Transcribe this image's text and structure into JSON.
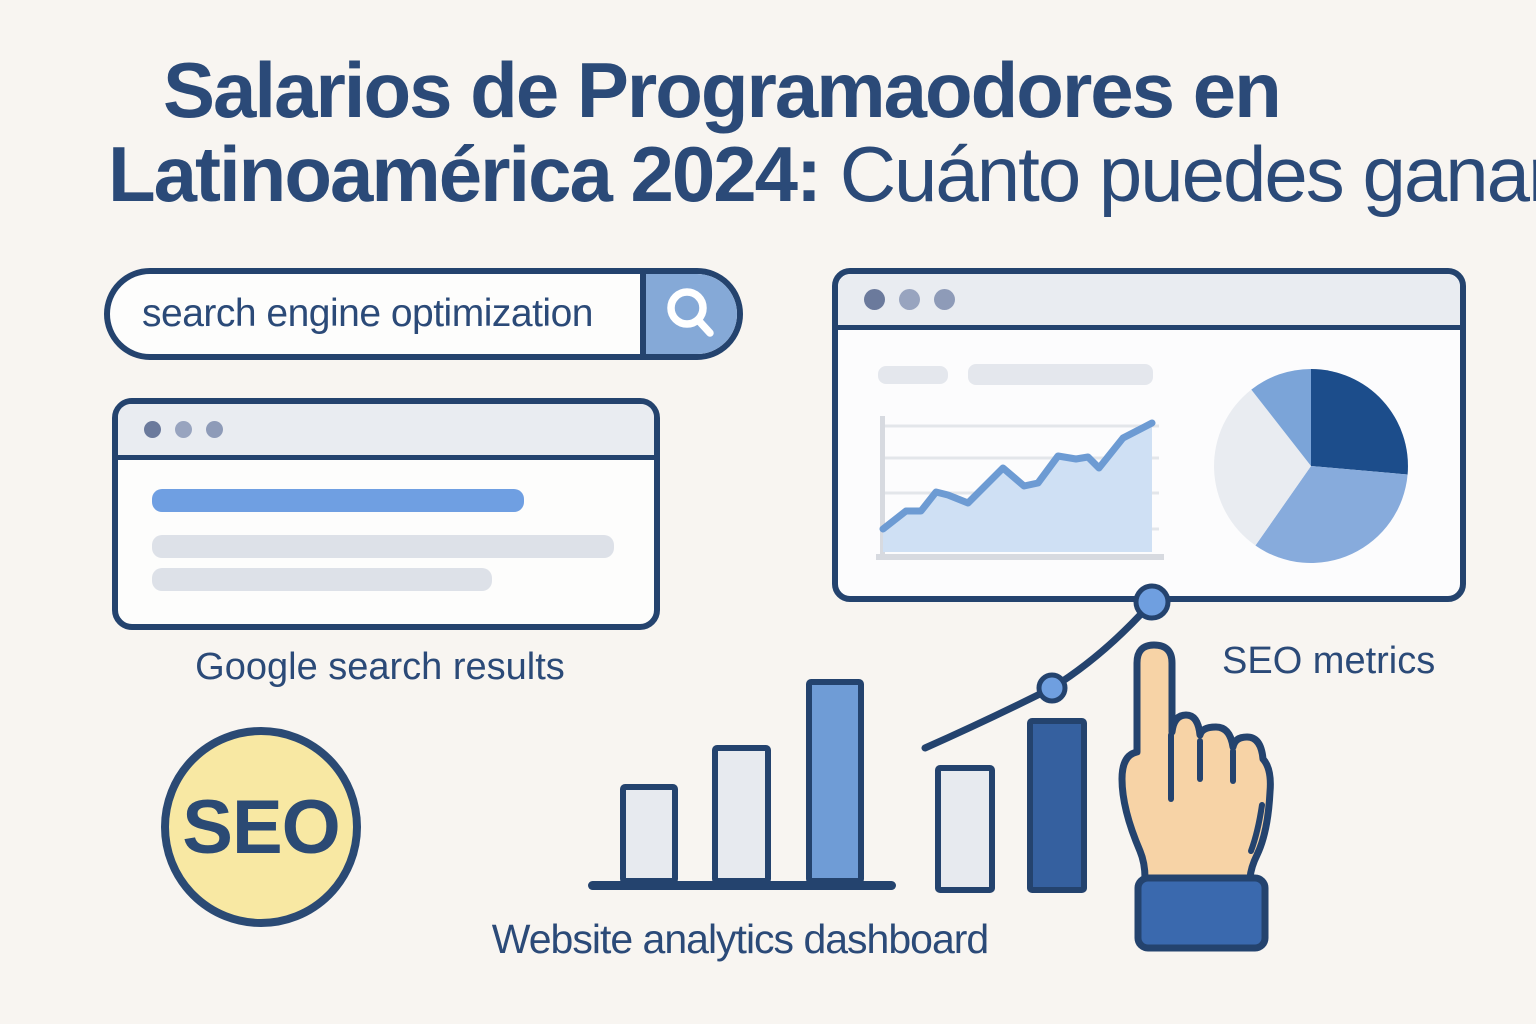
{
  "title": {
    "line1": "Salarios de Programaodores en",
    "line2_bold": "Latinoamérica 2024:",
    "line2_regular": " Cuánto puedes ganar"
  },
  "search_bar": {
    "query": "search engine optimization",
    "button_icon": "magnifier"
  },
  "google_results_window": {
    "caption": "Google search results"
  },
  "analytics_window": {
    "caption": "SEO metrics"
  },
  "bar_chart": {
    "caption": "Website analytics dashboard"
  },
  "seo_badge": {
    "label": "SEO"
  },
  "colors": {
    "background": "#f8f5f1",
    "navy_outline": "#24436e",
    "title_text": "#2b4a78",
    "search_button_blue": "#85a9d7",
    "result_highlight_blue": "#6f9fe2",
    "result_gray": "#dde1e8",
    "badge_yellow": "#f8e8a3",
    "hand_skin": "#f7d3a6",
    "sleeve_blue": "#3a69ae",
    "bar_light": "#e7eaef",
    "bar_blue": "#6f9cd6",
    "bar_dark": "#35609f",
    "area_line_blue": "#6d9bd3",
    "area_fill_blue": "#cfe0f4",
    "marker_blue": "#6f9fe0"
  },
  "chart_data": [
    {
      "id": "bars-left",
      "type": "bar",
      "values": [
        0.49,
        0.68,
        1.0
      ],
      "colors": [
        "light",
        "light",
        "blue"
      ]
    },
    {
      "id": "bars-right",
      "type": "bar",
      "values": [
        0.73,
        1.0
      ],
      "colors": [
        "light",
        "dark"
      ]
    },
    {
      "id": "traffic-area",
      "type": "area",
      "trend": "rising wavy line, decorative, no labeled values"
    },
    {
      "id": "traffic-pie",
      "type": "pie",
      "slices": [
        {
          "value": 95,
          "color": "#1c4d8b"
        },
        {
          "value": 120,
          "color": "#87abdc"
        },
        {
          "value": 107,
          "color": "#e9ecf1"
        },
        {
          "value": 38,
          "color": "#7ba4d8"
        }
      ],
      "value_unit": "degrees"
    },
    {
      "id": "growth-line",
      "type": "line",
      "trend": "rising with two circular markers, decorative"
    }
  ]
}
